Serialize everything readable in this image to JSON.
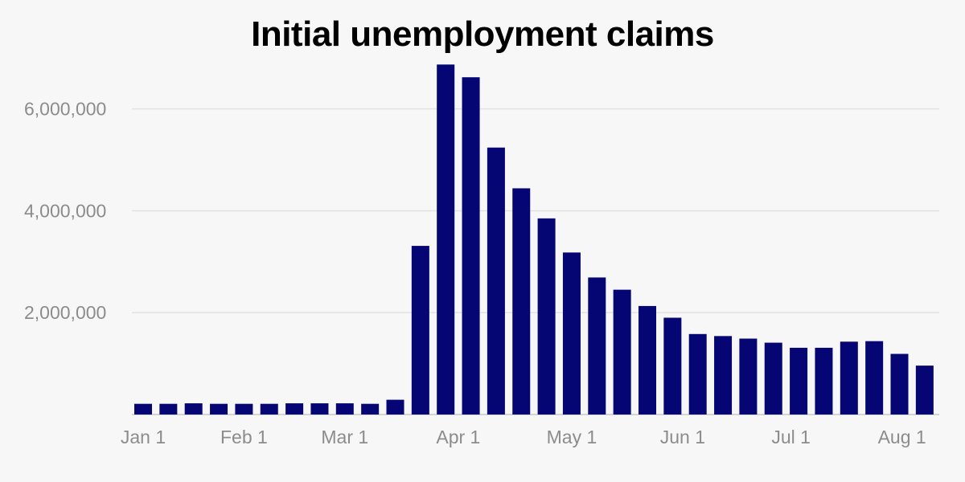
{
  "chart_data": {
    "type": "bar",
    "title": "Initial unemployment claims",
    "xlabel": "",
    "ylabel": "",
    "ylim": [
      0,
      6800000
    ],
    "grid": true,
    "bar_color": "#050573",
    "yticks": [
      {
        "value": 2000000,
        "label": "2,000,000"
      },
      {
        "value": 4000000,
        "label": "4,000,000"
      },
      {
        "value": 6000000,
        "label": "6,000,000"
      }
    ],
    "xticks": [
      {
        "index": 0,
        "label": "Jan 1"
      },
      {
        "index": 4,
        "label": "Feb 1"
      },
      {
        "index": 8,
        "label": "Mar 1"
      },
      {
        "index": 12.5,
        "label": "Apr 1"
      },
      {
        "index": 17,
        "label": "May 1"
      },
      {
        "index": 21.4,
        "label": "Jun 1"
      },
      {
        "index": 25.7,
        "label": "Jul 1"
      },
      {
        "index": 30.1,
        "label": "Aug 1"
      }
    ],
    "values": [
      210000,
      210000,
      220000,
      210000,
      210000,
      210000,
      220000,
      220000,
      220000,
      210000,
      290000,
      3310000,
      6870000,
      6620000,
      5240000,
      4440000,
      3850000,
      3180000,
      2690000,
      2450000,
      2130000,
      1900000,
      1580000,
      1540000,
      1490000,
      1410000,
      1310000,
      1310000,
      1430000,
      1440000,
      1190000,
      960000
    ]
  }
}
